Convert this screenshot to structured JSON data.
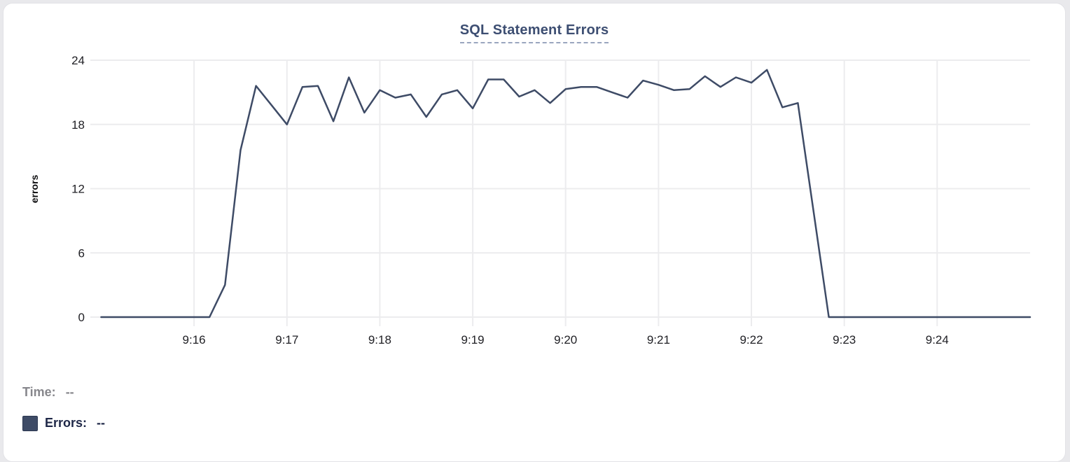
{
  "title": "SQL Statement Errors",
  "legend": {
    "time_label": "Time:",
    "time_value": "--",
    "errors_label": "Errors:",
    "errors_value": "--"
  },
  "colors": {
    "line": "#3e4b66",
    "title": "#3d4e72",
    "title_underline": "#9aa6bf",
    "grid": "#ececee",
    "axis_text": "#1f1f24",
    "time_legend_text": "#87878c",
    "errors_legend_text": "#1e2747",
    "swatch_border": "#2c3852"
  },
  "chart_data": {
    "type": "line",
    "title": "SQL Statement Errors",
    "xlabel": "",
    "ylabel": "errors",
    "ylim": [
      0,
      24
    ],
    "y_ticks": [
      0,
      6,
      12,
      18,
      24
    ],
    "x_ticks": [
      "9:16",
      "9:17",
      "9:18",
      "9:19",
      "9:20",
      "9:21",
      "9:22",
      "9:23",
      "9:24"
    ],
    "grid": true,
    "legend_position": "bottom-left",
    "series": [
      {
        "name": "Errors",
        "x": [
          "9:15:00",
          "9:15:10",
          "9:15:20",
          "9:15:30",
          "9:15:40",
          "9:15:50",
          "9:16:00",
          "9:16:10",
          "9:16:20",
          "9:16:30",
          "9:16:40",
          "9:16:50",
          "9:17:00",
          "9:17:10",
          "9:17:20",
          "9:17:30",
          "9:17:40",
          "9:17:50",
          "9:18:00",
          "9:18:10",
          "9:18:20",
          "9:18:30",
          "9:18:40",
          "9:18:50",
          "9:19:00",
          "9:19:10",
          "9:19:20",
          "9:19:30",
          "9:19:40",
          "9:19:50",
          "9:20:00",
          "9:20:10",
          "9:20:20",
          "9:20:30",
          "9:20:40",
          "9:20:50",
          "9:21:00",
          "9:21:10",
          "9:21:20",
          "9:21:30",
          "9:21:40",
          "9:21:50",
          "9:22:00",
          "9:22:10",
          "9:22:20",
          "9:22:30",
          "9:22:40",
          "9:22:50",
          "9:23:00",
          "9:23:10",
          "9:23:20",
          "9:23:30",
          "9:23:40",
          "9:23:50",
          "9:24:00",
          "9:24:10",
          "9:24:20",
          "9:24:30",
          "9:24:40",
          "9:24:50",
          "9:25:00"
        ],
        "values": [
          0,
          0,
          0,
          0,
          0,
          0,
          0,
          0,
          3,
          15.6,
          21.6,
          19.8,
          18,
          21.5,
          21.6,
          18.3,
          22.4,
          19.1,
          21.2,
          20.5,
          20.8,
          18.7,
          20.8,
          21.2,
          19.5,
          22.2,
          22.2,
          20.6,
          21.2,
          20,
          21.3,
          21.5,
          21.5,
          21,
          20.5,
          22.1,
          21.7,
          21.2,
          21.3,
          22.5,
          21.5,
          22.4,
          21.9,
          23.1,
          19.6,
          20,
          10,
          0,
          0,
          0,
          0,
          0,
          0,
          0,
          0,
          0,
          0,
          0,
          0,
          0,
          0
        ]
      }
    ]
  }
}
